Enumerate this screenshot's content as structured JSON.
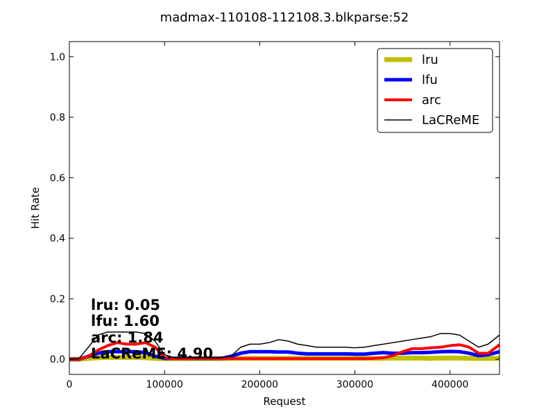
{
  "chart_data": {
    "type": "line",
    "title": "madmax-110108-112108.3.blkparse:52",
    "xlabel": "Request",
    "ylabel": "Hit Rate",
    "xlim": [
      0,
      452000
    ],
    "ylim": [
      -0.05,
      1.05
    ],
    "xticks": [
      0,
      100000,
      200000,
      300000,
      400000
    ],
    "xtick_labels": [
      "0",
      "100000",
      "200000",
      "300000",
      "400000"
    ],
    "yticks": [
      0.0,
      0.2,
      0.4,
      0.6,
      0.8,
      1.0
    ],
    "ytick_labels": [
      "0.0",
      "0.2",
      "0.4",
      "0.6",
      "0.8",
      "1.0"
    ],
    "grid": false,
    "legend_position": "top-right",
    "x": [
      0,
      10000,
      20000,
      30000,
      40000,
      50000,
      60000,
      70000,
      80000,
      90000,
      100000,
      110000,
      120000,
      130000,
      140000,
      150000,
      160000,
      170000,
      180000,
      190000,
      200000,
      210000,
      220000,
      230000,
      240000,
      250000,
      260000,
      270000,
      280000,
      290000,
      300000,
      310000,
      320000,
      330000,
      340000,
      350000,
      360000,
      370000,
      380000,
      390000,
      400000,
      410000,
      420000,
      430000,
      440000,
      452000
    ],
    "series": [
      {
        "name": "lru",
        "color": "#bfbf00",
        "width": 7,
        "values": [
          0.0,
          0.0,
          0.003,
          0.005,
          0.006,
          0.006,
          0.006,
          0.006,
          0.005,
          0.003,
          0.002,
          0.002,
          0.002,
          0.002,
          0.002,
          0.002,
          0.002,
          0.003,
          0.003,
          0.003,
          0.003,
          0.003,
          0.003,
          0.003,
          0.003,
          0.003,
          0.003,
          0.003,
          0.003,
          0.003,
          0.003,
          0.003,
          0.003,
          0.003,
          0.004,
          0.004,
          0.004,
          0.004,
          0.003,
          0.004,
          0.004,
          0.004,
          0.003,
          0.003,
          0.003,
          0.003
        ]
      },
      {
        "name": "lfu",
        "color": "#0000ff",
        "width": 5,
        "values": [
          0.0,
          0.0,
          0.01,
          0.02,
          0.025,
          0.025,
          0.025,
          0.025,
          0.022,
          0.01,
          0.003,
          0.003,
          0.003,
          0.003,
          0.003,
          0.003,
          0.003,
          0.01,
          0.02,
          0.025,
          0.025,
          0.025,
          0.024,
          0.024,
          0.02,
          0.018,
          0.018,
          0.018,
          0.018,
          0.018,
          0.017,
          0.017,
          0.02,
          0.022,
          0.02,
          0.02,
          0.022,
          0.022,
          0.023,
          0.025,
          0.026,
          0.025,
          0.02,
          0.012,
          0.015,
          0.025
        ]
      },
      {
        "name": "arc",
        "color": "#ff0000",
        "width": 4,
        "values": [
          0.0,
          0.0,
          0.01,
          0.03,
          0.045,
          0.055,
          0.05,
          0.05,
          0.055,
          0.04,
          0.005,
          0.002,
          0.002,
          0.003,
          0.003,
          0.003,
          0.002,
          0.002,
          0.002,
          0.002,
          0.002,
          0.002,
          0.002,
          0.002,
          0.002,
          0.002,
          0.002,
          0.002,
          0.002,
          0.002,
          0.002,
          0.002,
          0.003,
          0.005,
          0.012,
          0.025,
          0.035,
          0.035,
          0.038,
          0.04,
          0.045,
          0.048,
          0.04,
          0.02,
          0.02,
          0.048
        ]
      },
      {
        "name": "LaCReME",
        "color": "#000000",
        "width": 1.5,
        "values": [
          0.0,
          0.002,
          0.04,
          0.08,
          0.09,
          0.09,
          0.09,
          0.09,
          0.085,
          0.06,
          0.015,
          0.005,
          0.005,
          0.005,
          0.005,
          0.005,
          0.005,
          0.01,
          0.04,
          0.05,
          0.05,
          0.055,
          0.065,
          0.06,
          0.05,
          0.045,
          0.04,
          0.04,
          0.04,
          0.04,
          0.038,
          0.04,
          0.045,
          0.05,
          0.055,
          0.06,
          0.065,
          0.07,
          0.075,
          0.085,
          0.085,
          0.08,
          0.06,
          0.04,
          0.05,
          0.08
        ]
      }
    ],
    "annotations": [
      "lru:  0.05",
      "lfu:  1.60",
      "arc:  1.84",
      "LaCReME:  4.90"
    ]
  }
}
